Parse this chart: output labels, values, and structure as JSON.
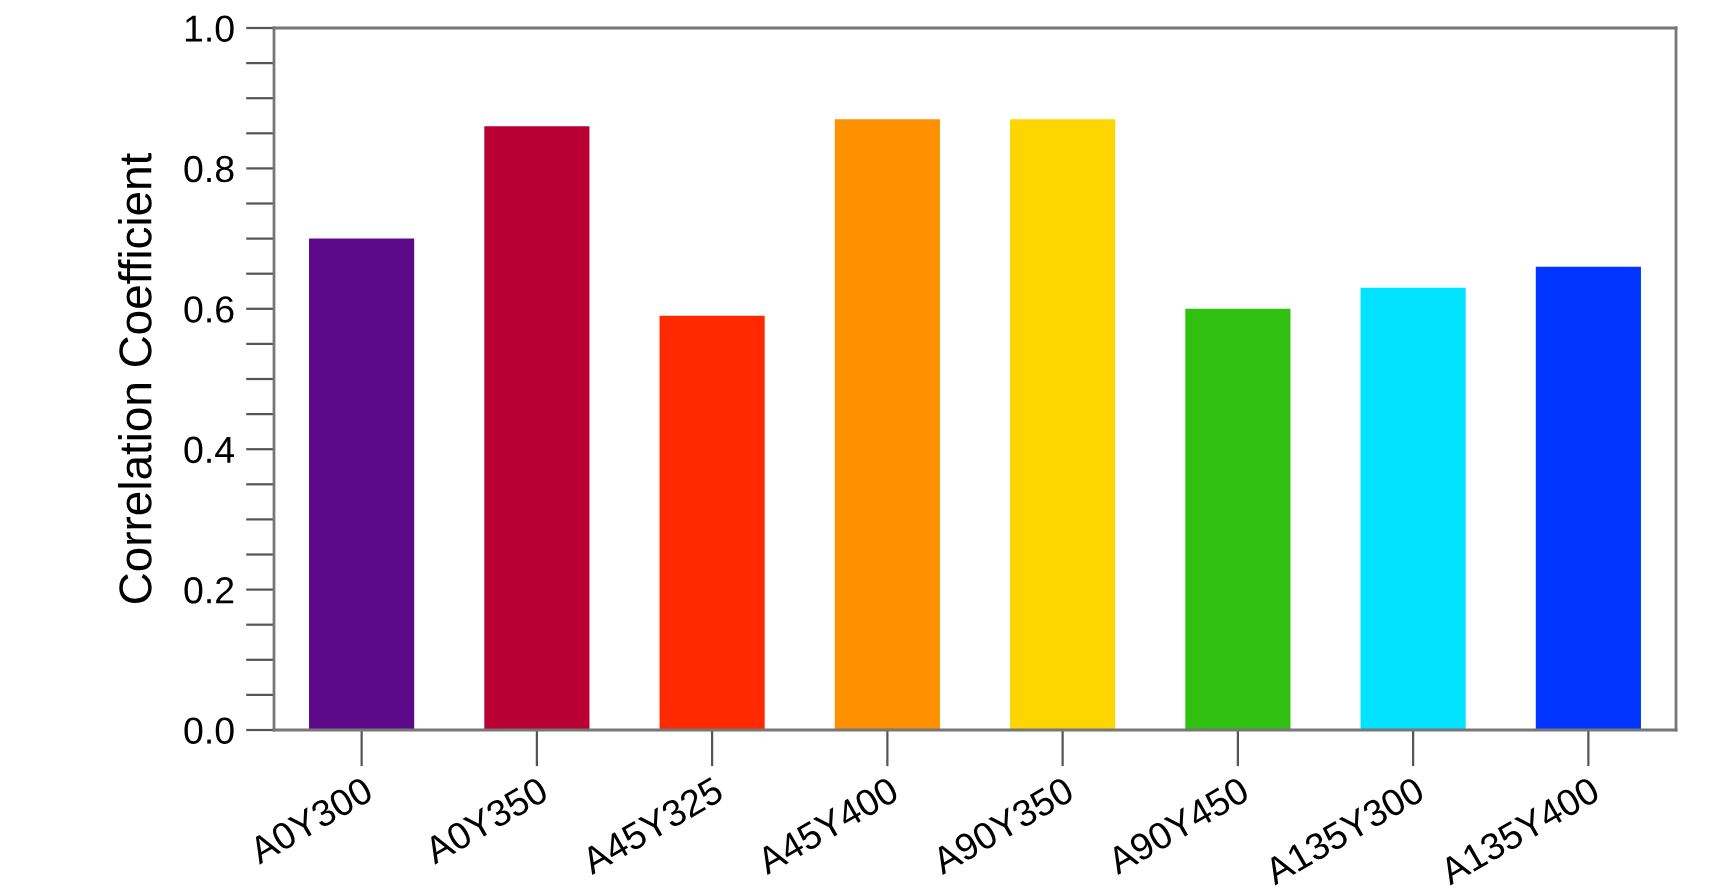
{
  "chart_data": {
    "type": "bar",
    "ylabel": "Correlation Coefficient",
    "categories": [
      "A0Y300",
      "A0Y350",
      "A45Y325",
      "A45Y400",
      "A90Y350",
      "A90Y450",
      "A135Y300",
      "A135Y400"
    ],
    "values": [
      0.7,
      0.86,
      0.59,
      0.87,
      0.87,
      0.6,
      0.63,
      0.66
    ],
    "colors": [
      "#5c0a8a",
      "#b80035",
      "#ff2a00",
      "#ff9000",
      "#ffd500",
      "#30c010",
      "#00e2ff",
      "#0035ff"
    ],
    "ylim": [
      0,
      1.0
    ],
    "yticks": [
      {
        "value": 0,
        "label": "0.0"
      },
      {
        "value": 0.05,
        "label": null
      },
      {
        "value": 0.1,
        "label": null
      },
      {
        "value": 0.15,
        "label": null
      },
      {
        "value": 0.2,
        "label": "0.2"
      },
      {
        "value": 0.25,
        "label": null
      },
      {
        "value": 0.3,
        "label": null
      },
      {
        "value": 0.35,
        "label": null
      },
      {
        "value": 0.4,
        "label": "0.4"
      },
      {
        "value": 0.45,
        "label": null
      },
      {
        "value": 0.5,
        "label": null
      },
      {
        "value": 0.55,
        "label": null
      },
      {
        "value": 0.6,
        "label": "0.6"
      },
      {
        "value": 0.65,
        "label": null
      },
      {
        "value": 0.7,
        "label": null
      },
      {
        "value": 0.75,
        "label": null
      },
      {
        "value": 0.8,
        "label": "0.8"
      },
      {
        "value": 0.85,
        "label": null
      },
      {
        "value": 0.9,
        "label": null
      },
      {
        "value": 0.95,
        "label": null
      },
      {
        "value": 1.0,
        "label": "1.0"
      }
    ],
    "grid": false
  }
}
